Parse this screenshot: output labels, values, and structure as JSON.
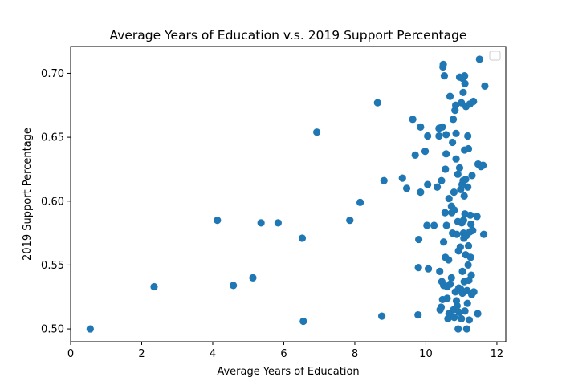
{
  "chart_data": {
    "type": "scatter",
    "title": "Average Years of Education v.s. 2019 Support Percentage",
    "xlabel": "Average Years of Education",
    "ylabel": "2019 Support Percentage",
    "xlim": [
      0,
      12.25
    ],
    "ylim": [
      0.49,
      0.721
    ],
    "xticks": [
      0,
      2,
      4,
      6,
      8,
      10,
      12
    ],
    "yticks": [
      0.5,
      0.55,
      0.6,
      0.65,
      0.7
    ],
    "xtick_labels": [
      "0",
      "2",
      "4",
      "6",
      "8",
      "10",
      "12"
    ],
    "ytick_labels": [
      "0.50",
      "0.55",
      "0.60",
      "0.65",
      "0.70"
    ],
    "grid": false,
    "legend": {
      "placement": "top-right",
      "entries": []
    },
    "colors": {
      "marker": "#1f77b4",
      "axis": "#000000",
      "background": "#ffffff"
    },
    "series": [
      {
        "points": [
          [
            0.55,
            0.5
          ],
          [
            2.35,
            0.533
          ],
          [
            4.13,
            0.585
          ],
          [
            4.58,
            0.534
          ],
          [
            5.13,
            0.54
          ],
          [
            5.36,
            0.583
          ],
          [
            5.84,
            0.583
          ],
          [
            6.52,
            0.571
          ],
          [
            6.55,
            0.506
          ],
          [
            6.93,
            0.654
          ],
          [
            7.86,
            0.585
          ],
          [
            8.15,
            0.599
          ],
          [
            8.64,
            0.677
          ],
          [
            8.76,
            0.51
          ],
          [
            8.82,
            0.616
          ],
          [
            9.34,
            0.618
          ],
          [
            9.46,
            0.61
          ],
          [
            9.63,
            0.664
          ],
          [
            9.7,
            0.636
          ],
          [
            9.78,
            0.511
          ],
          [
            9.79,
            0.548
          ],
          [
            9.8,
            0.57
          ],
          [
            9.85,
            0.658
          ],
          [
            9.85,
            0.607
          ],
          [
            9.98,
            0.639
          ],
          [
            10.03,
            0.581
          ],
          [
            10.05,
            0.651
          ],
          [
            10.05,
            0.613
          ],
          [
            10.07,
            0.547
          ],
          [
            10.23,
            0.581
          ],
          [
            10.32,
            0.611
          ],
          [
            10.37,
            0.657
          ],
          [
            10.37,
            0.651
          ],
          [
            10.39,
            0.545
          ],
          [
            10.4,
            0.515
          ],
          [
            10.43,
            0.517
          ],
          [
            10.44,
            0.616
          ],
          [
            10.45,
            0.537
          ],
          [
            10.46,
            0.658
          ],
          [
            10.47,
            0.523
          ],
          [
            10.48,
            0.705
          ],
          [
            10.49,
            0.707
          ],
          [
            10.5,
            0.568
          ],
          [
            10.5,
            0.534
          ],
          [
            10.52,
            0.698
          ],
          [
            10.54,
            0.591
          ],
          [
            10.55,
            0.625
          ],
          [
            10.55,
            0.556
          ],
          [
            10.57,
            0.652
          ],
          [
            10.57,
            0.637
          ],
          [
            10.58,
            0.581
          ],
          [
            10.6,
            0.533
          ],
          [
            10.6,
            0.524
          ],
          [
            10.62,
            0.508
          ],
          [
            10.64,
            0.554
          ],
          [
            10.65,
            0.512
          ],
          [
            10.65,
            0.602
          ],
          [
            10.68,
            0.682
          ],
          [
            10.68,
            0.535
          ],
          [
            10.7,
            0.51
          ],
          [
            10.72,
            0.596
          ],
          [
            10.72,
            0.54
          ],
          [
            10.73,
            0.591
          ],
          [
            10.75,
            0.575
          ],
          [
            10.75,
            0.646
          ],
          [
            10.77,
            0.664
          ],
          [
            10.78,
            0.515
          ],
          [
            10.79,
            0.607
          ],
          [
            10.8,
            0.593
          ],
          [
            10.8,
            0.509
          ],
          [
            10.82,
            0.671
          ],
          [
            10.83,
            0.529
          ],
          [
            10.84,
            0.675
          ],
          [
            10.85,
            0.653
          ],
          [
            10.85,
            0.633
          ],
          [
            10.86,
            0.522
          ],
          [
            10.87,
            0.574
          ],
          [
            10.88,
            0.518
          ],
          [
            10.9,
            0.621
          ],
          [
            10.9,
            0.584
          ],
          [
            10.91,
            0.5
          ],
          [
            10.92,
            0.561
          ],
          [
            10.93,
            0.532
          ],
          [
            10.94,
            0.513
          ],
          [
            10.95,
            0.697
          ],
          [
            10.95,
            0.626
          ],
          [
            10.97,
            0.564
          ],
          [
            10.98,
            0.609
          ],
          [
            10.98,
            0.531
          ],
          [
            11.0,
            0.677
          ],
          [
            11.0,
            0.508
          ],
          [
            11.01,
            0.583
          ],
          [
            11.02,
            0.613
          ],
          [
            11.03,
            0.545
          ],
          [
            11.03,
            0.528
          ],
          [
            11.04,
            0.696
          ],
          [
            11.05,
            0.685
          ],
          [
            11.05,
            0.616
          ],
          [
            11.06,
            0.585
          ],
          [
            11.06,
            0.575
          ],
          [
            11.07,
            0.571
          ],
          [
            11.08,
            0.604
          ],
          [
            11.08,
            0.537
          ],
          [
            11.09,
            0.698
          ],
          [
            11.09,
            0.64
          ],
          [
            11.1,
            0.692
          ],
          [
            11.1,
            0.59
          ],
          [
            11.1,
            0.514
          ],
          [
            11.12,
            0.617
          ],
          [
            11.12,
            0.558
          ],
          [
            11.13,
            0.674
          ],
          [
            11.14,
            0.573
          ],
          [
            11.15,
            0.5
          ],
          [
            11.16,
            0.53
          ],
          [
            11.17,
            0.52
          ],
          [
            11.18,
            0.651
          ],
          [
            11.18,
            0.611
          ],
          [
            11.19,
            0.55
          ],
          [
            11.2,
            0.641
          ],
          [
            11.2,
            0.565
          ],
          [
            11.21,
            0.538
          ],
          [
            11.22,
            0.507
          ],
          [
            11.24,
            0.676
          ],
          [
            11.24,
            0.576
          ],
          [
            11.25,
            0.589
          ],
          [
            11.26,
            0.556
          ],
          [
            11.27,
            0.582
          ],
          [
            11.28,
            0.542
          ],
          [
            11.29,
            0.527
          ],
          [
            11.3,
            0.62
          ],
          [
            11.32,
            0.577
          ],
          [
            11.34,
            0.678
          ],
          [
            11.35,
            0.529
          ],
          [
            11.44,
            0.588
          ],
          [
            11.46,
            0.512
          ],
          [
            11.47,
            0.629
          ],
          [
            11.51,
            0.711
          ],
          [
            11.55,
            0.627
          ],
          [
            11.61,
            0.628
          ],
          [
            11.63,
            0.574
          ],
          [
            11.66,
            0.69
          ]
        ]
      }
    ]
  }
}
